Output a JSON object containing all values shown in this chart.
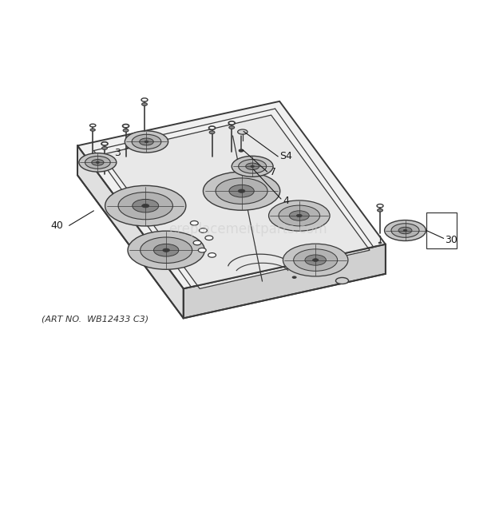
{
  "bg_color": "#ffffff",
  "line_color": "#3a3a3a",
  "label_color": "#1a1a1a",
  "art_note": "(ART NO.  WB12433 C3)",
  "watermark": "ereplacementparts.com",
  "fig_width": 6.2,
  "fig_height": 6.61,
  "dpi": 100
}
